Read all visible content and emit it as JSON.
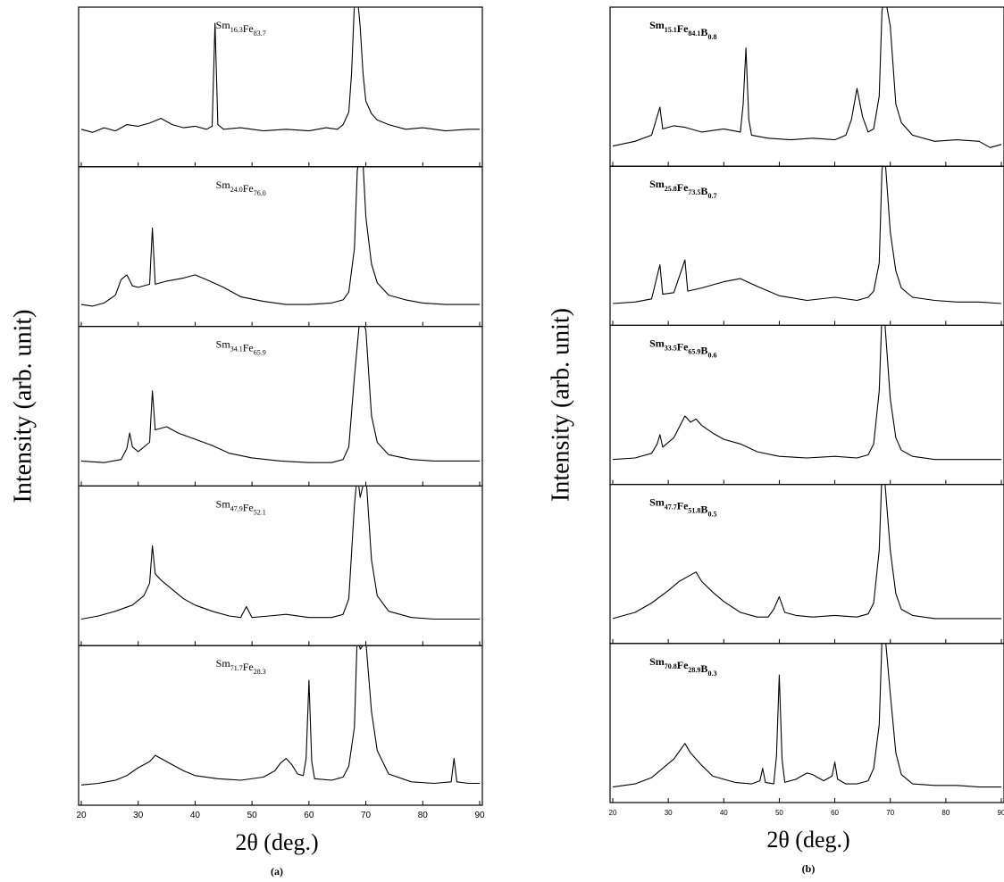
{
  "chart_data": [
    {
      "type": "line",
      "xlabel": "2θ (deg.)",
      "ylabel": "Intensity (arb. unit)",
      "caption": "(a)",
      "xlim": [
        20,
        90
      ],
      "xticks": [
        20,
        30,
        40,
        50,
        60,
        70,
        80,
        90
      ],
      "ylim": [
        0,
        100
      ],
      "series": [
        {
          "name": "Sm16.3Fe83.7",
          "color": "#000000",
          "x": [
            20,
            22,
            24,
            26,
            28,
            30,
            32,
            34,
            36,
            38,
            40,
            42,
            43,
            43.5,
            44,
            45,
            48,
            52,
            56,
            60,
            63,
            65,
            66,
            67,
            67.5,
            68,
            68.5,
            69,
            69.5,
            70,
            71,
            72,
            74,
            77,
            80,
            84,
            88,
            90
          ],
          "values": [
            24,
            22,
            25,
            23,
            27,
            26,
            28,
            31,
            27,
            25,
            26,
            24,
            26,
            92,
            27,
            24,
            25,
            23,
            24,
            23,
            25,
            24,
            27,
            35,
            60,
            105,
            110,
            90,
            60,
            42,
            34,
            30,
            27,
            24,
            25,
            23,
            24,
            24
          ]
        },
        {
          "name": "Sm24.0Fe76.0",
          "color": "#000000",
          "x": [
            20,
            22,
            24,
            26,
            27,
            28,
            29,
            30,
            32,
            32.5,
            33,
            35,
            38,
            40,
            42,
            45,
            48,
            52,
            56,
            60,
            64,
            66,
            67,
            68,
            68.5,
            69,
            69.5,
            70,
            71,
            72,
            74,
            77,
            80,
            84,
            88,
            90
          ],
          "values": [
            14,
            13,
            15,
            20,
            30,
            33,
            26,
            25,
            27,
            63,
            27,
            29,
            31,
            33,
            30,
            25,
            19,
            16,
            14,
            14,
            15,
            17,
            22,
            50,
            100,
            110,
            105,
            70,
            40,
            28,
            20,
            17,
            15,
            14,
            14,
            14
          ]
        },
        {
          "name": "Sm34.1Fe65.9",
          "color": "#000000",
          "x": [
            20,
            24,
            27,
            28,
            28.5,
            29,
            30,
            32,
            32.5,
            33,
            35,
            37,
            40,
            43,
            46,
            50,
            55,
            60,
            64,
            66,
            67,
            68,
            69,
            70,
            71,
            72,
            74,
            78,
            82,
            86,
            90
          ],
          "values": [
            16,
            15,
            17,
            24,
            34,
            25,
            22,
            28,
            61,
            36,
            38,
            34,
            30,
            26,
            21,
            18,
            16,
            15,
            15,
            17,
            25,
            70,
            110,
            100,
            45,
            28,
            20,
            17,
            16,
            16,
            16
          ]
        },
        {
          "name": "Sm47.9Fe52.1",
          "color": "#000000",
          "x": [
            20,
            23,
            26,
            29,
            31,
            32,
            32.5,
            33,
            34,
            36,
            38,
            40,
            43,
            46,
            48,
            49,
            50,
            53,
            56,
            60,
            64,
            66,
            67,
            68,
            68.5,
            69,
            70,
            71,
            72,
            74,
            78,
            82,
            86,
            90
          ],
          "values": [
            17,
            19,
            22,
            26,
            32,
            40,
            64,
            46,
            42,
            36,
            30,
            26,
            22,
            19,
            18,
            25,
            18,
            19,
            20,
            18,
            18,
            20,
            30,
            90,
            110,
            95,
            110,
            55,
            32,
            22,
            18,
            17,
            17,
            17
          ]
        },
        {
          "name": "Sm71.7Fe28.3",
          "color": "#000000",
          "x": [
            20,
            23,
            26,
            28,
            30,
            32,
            33,
            34,
            36,
            38,
            40,
            44,
            48,
            52,
            54,
            55,
            56,
            57,
            58,
            59,
            59.5,
            60,
            60.5,
            61,
            64,
            66,
            67,
            68,
            68.5,
            69,
            70,
            71,
            72,
            74,
            78,
            82,
            85,
            85.5,
            86,
            88,
            90
          ],
          "values": [
            13,
            14,
            16,
            19,
            24,
            28,
            32,
            30,
            26,
            22,
            19,
            17,
            16,
            18,
            22,
            27,
            30,
            26,
            20,
            19,
            30,
            80,
            28,
            17,
            16,
            18,
            25,
            50,
            110,
            100,
            105,
            60,
            35,
            20,
            15,
            14,
            15,
            30,
            15,
            14,
            14
          ]
        }
      ]
    },
    {
      "type": "line",
      "xlabel": "2θ (deg.)",
      "ylabel": "Intensity (arb. unit)",
      "caption": "(b)",
      "xlim": [
        20,
        90
      ],
      "xticks": [
        20,
        30,
        40,
        50,
        60,
        70,
        80,
        90
      ],
      "ylim": [
        0,
        100
      ],
      "series": [
        {
          "name": "Sm15.1Fe84.1B0.8",
          "color": "#000000",
          "x": [
            20,
            24,
            27,
            28.5,
            29,
            31,
            33,
            36,
            40,
            43,
            43.5,
            44,
            44.5,
            45,
            48,
            52,
            56,
            60,
            62,
            63,
            64,
            65,
            66,
            67,
            68,
            68.5,
            69,
            70,
            71,
            72,
            74,
            78,
            82,
            86,
            88,
            90
          ],
          "values": [
            13,
            16,
            20,
            38,
            24,
            26,
            25,
            22,
            24,
            22,
            40,
            76,
            30,
            20,
            18,
            17,
            18,
            17,
            20,
            30,
            50,
            32,
            22,
            24,
            45,
            100,
            110,
            90,
            40,
            28,
            20,
            16,
            17,
            16,
            12,
            14
          ]
        },
        {
          "name": "Sm25.8Fe73.5B0.7",
          "color": "#000000",
          "x": [
            20,
            24,
            27,
            28.5,
            29,
            31,
            33,
            33.5,
            36,
            40,
            43,
            46,
            50,
            55,
            60,
            64,
            66,
            67,
            68,
            68.5,
            69,
            70,
            71,
            72,
            74,
            78,
            82,
            86,
            90
          ],
          "values": [
            14,
            15,
            17,
            39,
            20,
            21,
            42,
            22,
            24,
            28,
            30,
            25,
            19,
            16,
            18,
            16,
            18,
            22,
            40,
            100,
            110,
            60,
            35,
            24,
            18,
            16,
            15,
            15,
            14
          ]
        },
        {
          "name": "Sm33.5Fe65.9B0.6",
          "color": "#000000",
          "x": [
            20,
            24,
            27,
            28,
            28.5,
            29,
            31,
            33,
            34,
            35,
            36,
            38,
            40,
            43,
            46,
            50,
            55,
            60,
            64,
            66,
            67,
            68,
            68.5,
            69,
            70,
            71,
            72,
            74,
            78,
            82,
            86,
            90
          ],
          "values": [
            16,
            17,
            20,
            26,
            32,
            24,
            30,
            44,
            40,
            42,
            38,
            33,
            29,
            26,
            21,
            18,
            17,
            18,
            17,
            19,
            26,
            60,
            110,
            105,
            55,
            30,
            22,
            18,
            16,
            16,
            16,
            16
          ]
        },
        {
          "name": "Sm47.7Fe51.8B0.5",
          "color": "#000000",
          "x": [
            20,
            24,
            27,
            30,
            32,
            34,
            35,
            36,
            38,
            40,
            43,
            46,
            48,
            49,
            50,
            51,
            53,
            56,
            60,
            64,
            66,
            67,
            68,
            68.5,
            69,
            70,
            71,
            72,
            74,
            78,
            82,
            86,
            90
          ],
          "values": [
            16,
            20,
            26,
            34,
            40,
            44,
            46,
            40,
            33,
            27,
            20,
            17,
            17,
            22,
            30,
            20,
            18,
            17,
            18,
            17,
            19,
            26,
            60,
            110,
            105,
            60,
            32,
            22,
            18,
            16,
            16,
            16,
            16
          ]
        },
        {
          "name": "Sm70.8Fe28.9B0.3",
          "color": "#000000",
          "x": [
            20,
            24,
            27,
            29,
            31,
            33,
            34,
            36,
            38,
            42,
            45,
            46.5,
            47,
            47.5,
            49,
            49.5,
            50,
            50.5,
            51,
            53,
            55,
            56,
            58,
            59.5,
            60,
            60.5,
            62,
            64,
            66,
            67,
            68,
            68.5,
            69,
            70,
            71,
            72,
            74,
            78,
            82,
            86,
            90
          ],
          "values": [
            10,
            12,
            16,
            22,
            28,
            38,
            32,
            24,
            17,
            13,
            12,
            14,
            22,
            13,
            12,
            30,
            82,
            28,
            13,
            15,
            19,
            18,
            14,
            17,
            26,
            15,
            12,
            12,
            14,
            22,
            50,
            105,
            110,
            70,
            32,
            18,
            12,
            11,
            11,
            10,
            10
          ]
        }
      ]
    }
  ]
}
